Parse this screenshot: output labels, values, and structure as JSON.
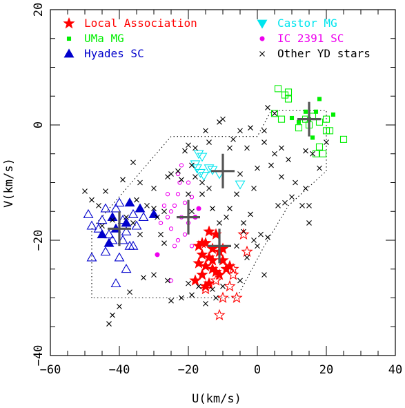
{
  "chart_data": {
    "type": "scatter",
    "title": "",
    "xlabel": "U(km/s)",
    "ylabel": "V(km/s)",
    "xlim": [
      -60,
      40
    ],
    "ylim": [
      -40,
      20
    ],
    "xticks": [
      -60,
      -40,
      -20,
      0,
      20,
      40
    ],
    "yticks": [
      -40,
      -20,
      0,
      20
    ],
    "grid": false,
    "legend_position": "top",
    "colors": {
      "local": "#ff0000",
      "uma": "#00ee00",
      "hyades": "#0000cc",
      "castor": "#00e5ee",
      "ic2391": "#ee00ee",
      "other": "#000000",
      "cross": "#555555",
      "boundary": "#000000"
    },
    "series": [
      {
        "name": "Local Association",
        "marker": "star",
        "color": "#ff0000",
        "filled": [
          [
            -14,
            -18.5
          ],
          [
            -12,
            -19
          ],
          [
            -15,
            -20.5
          ],
          [
            -17,
            -21
          ],
          [
            -13,
            -21.5
          ],
          [
            -16,
            -22.5
          ],
          [
            -11,
            -22
          ],
          [
            -14,
            -23
          ],
          [
            -10,
            -23.5
          ],
          [
            -17,
            -24
          ],
          [
            -15,
            -24.5
          ],
          [
            -13,
            -25
          ],
          [
            -8,
            -24.5
          ],
          [
            -16,
            -26
          ],
          [
            -12,
            -25.5
          ],
          [
            -18,
            -27
          ],
          [
            -14,
            -27.5
          ],
          [
            -11,
            -26
          ],
          [
            -9,
            -25
          ],
          [
            -15,
            -28
          ],
          [
            -13,
            -23.5
          ],
          [
            -16,
            -20.5
          ],
          [
            -10,
            -21.5
          ]
        ],
        "open": [
          [
            -4,
            -19
          ],
          [
            -3,
            -22
          ],
          [
            -7,
            -25
          ],
          [
            -8,
            -28
          ],
          [
            -10,
            -30
          ],
          [
            -6,
            -30
          ],
          [
            -11,
            -33
          ],
          [
            -15,
            -28.5
          ],
          [
            -12,
            -27
          ],
          [
            -7,
            -26
          ]
        ]
      },
      {
        "name": "UMa MG",
        "marker": "square",
        "color": "#00ee00",
        "filled": [
          [
            14,
            2.3
          ],
          [
            17,
            2.3
          ],
          [
            18,
            4.5
          ],
          [
            22,
            1.8
          ],
          [
            10,
            1.2
          ],
          [
            16,
            -2.2
          ],
          [
            15,
            1.0
          ],
          [
            12,
            0.5
          ]
        ],
        "open": [
          [
            6,
            6.3
          ],
          [
            8,
            5.2
          ],
          [
            9,
            5.7
          ],
          [
            14,
            1
          ],
          [
            16,
            1.5
          ],
          [
            18,
            0.5
          ],
          [
            12,
            -0.5
          ],
          [
            5,
            2
          ],
          [
            7,
            1
          ],
          [
            20,
            -1
          ],
          [
            20,
            1
          ],
          [
            17,
            -5
          ],
          [
            19,
            -5
          ],
          [
            21,
            -1
          ],
          [
            25,
            -2.5
          ],
          [
            18,
            -3.8
          ],
          [
            9,
            4.5
          ],
          [
            15,
            0
          ]
        ]
      },
      {
        "name": "Hyades SC",
        "marker": "triangle",
        "color": "#0000cc",
        "filled": [
          [
            -34,
            -14.5
          ],
          [
            -30,
            -15.5
          ],
          [
            -37,
            -13.5
          ],
          [
            -45,
            -19
          ],
          [
            -41,
            -18
          ],
          [
            -38,
            -17
          ],
          [
            -43,
            -20.5
          ],
          [
            -42,
            -16
          ]
        ],
        "open": [
          [
            -49,
            -15.5
          ],
          [
            -48,
            -17.5
          ],
          [
            -44,
            -14.5
          ],
          [
            -40,
            -13.5
          ],
          [
            -36,
            -15.5
          ],
          [
            -33,
            -16
          ],
          [
            -38,
            -18.5
          ],
          [
            -37,
            -21
          ],
          [
            -42,
            -20
          ],
          [
            -46,
            -18
          ],
          [
            -41,
            -14.5
          ],
          [
            -39,
            -16.5
          ],
          [
            -35,
            -17.5
          ],
          [
            -44,
            -22
          ],
          [
            -41,
            -27.5
          ],
          [
            -38,
            -25
          ],
          [
            -36,
            -21
          ],
          [
            -43,
            -19
          ],
          [
            -48,
            -23
          ],
          [
            -39,
            -20
          ],
          [
            -45,
            -16.5
          ],
          [
            -40,
            -23
          ]
        ]
      },
      {
        "name": "Castor MG",
        "marker": "triangle-down",
        "color": "#00e5ee",
        "filled": [],
        "open": [
          [
            -17,
            -5
          ],
          [
            -16,
            -5.5
          ],
          [
            -18,
            -6.8
          ],
          [
            -17.5,
            -7.5
          ],
          [
            -16.5,
            -8.3
          ],
          [
            -15.5,
            -8.8
          ],
          [
            -13,
            -7.8
          ],
          [
            -11,
            -8.5
          ],
          [
            -5,
            -10.3
          ],
          [
            -14,
            -7.5
          ]
        ]
      },
      {
        "name": "IC 2391 SC",
        "marker": "circle",
        "color": "#ee00ee",
        "filled": [
          [
            -17,
            -14.5
          ],
          [
            -29,
            -22.5
          ],
          [
            -18,
            -16
          ]
        ],
        "open": [
          [
            -22,
            -7
          ],
          [
            -23,
            -8.5
          ],
          [
            -22.5,
            -10
          ],
          [
            -24,
            -14
          ],
          [
            -25,
            -15
          ],
          [
            -26,
            -16
          ],
          [
            -25,
            -18
          ],
          [
            -22,
            -16
          ],
          [
            -20,
            -17
          ],
          [
            -21,
            -19
          ],
          [
            -23,
            -20
          ],
          [
            -24,
            -21
          ],
          [
            -19,
            -12.5
          ],
          [
            -21,
            -13.5
          ],
          [
            -27,
            -14
          ],
          [
            -26,
            -12
          ],
          [
            -28,
            -17
          ],
          [
            -19,
            -21
          ],
          [
            -25,
            -27
          ],
          [
            -20,
            -10
          ],
          [
            -23,
            -12
          ]
        ]
      },
      {
        "name": "Other YD stars",
        "marker": "x",
        "color": "#000000",
        "filled": [
          [
            -10,
            1
          ],
          [
            -11,
            0.5
          ],
          [
            3,
            3
          ],
          [
            5,
            2
          ],
          [
            2,
            -1
          ],
          [
            -2,
            -0.5
          ],
          [
            -5,
            -1
          ],
          [
            -7,
            -2.5
          ],
          [
            -8,
            -4
          ],
          [
            -14,
            -3
          ],
          [
            -15,
            -1
          ],
          [
            -18,
            -4
          ],
          [
            -20,
            -3.5
          ],
          [
            -21,
            -4.5
          ],
          [
            -19,
            -7
          ],
          [
            -23,
            -8
          ],
          [
            -25,
            -8.5
          ],
          [
            -22,
            -9.5
          ],
          [
            -36,
            -6.5
          ],
          [
            -39,
            -9.5
          ],
          [
            -44,
            -11.5
          ],
          [
            -50,
            -11.5
          ],
          [
            -48,
            -13
          ],
          [
            -35,
            -13
          ],
          [
            -32,
            -14
          ],
          [
            -30,
            -14.5
          ],
          [
            -27,
            -15
          ],
          [
            -29,
            -16
          ],
          [
            -28,
            -19
          ],
          [
            -27,
            -20.5
          ],
          [
            -34,
            -19
          ],
          [
            -36,
            -17
          ],
          [
            -38,
            -16
          ],
          [
            -42,
            -16.5
          ],
          [
            -45,
            -17.5
          ],
          [
            -37,
            -29
          ],
          [
            -40,
            -31.5
          ],
          [
            -42,
            -33
          ],
          [
            -43,
            -34.5
          ],
          [
            -33,
            -26.5
          ],
          [
            -30,
            -26
          ],
          [
            -26,
            -27
          ],
          [
            -25,
            -30.5
          ],
          [
            -22,
            -30
          ],
          [
            -19,
            -29.5
          ],
          [
            -17,
            -28
          ],
          [
            -20,
            -27.5
          ],
          [
            -12,
            -30
          ],
          [
            -15,
            -31
          ],
          [
            -10,
            -28
          ],
          [
            -5,
            -27
          ],
          [
            -3,
            -23
          ],
          [
            2,
            -26
          ],
          [
            0,
            -21
          ],
          [
            1,
            -19
          ],
          [
            3,
            -19.5
          ],
          [
            -2,
            -15.5
          ],
          [
            -4,
            -17
          ],
          [
            -1,
            -11
          ],
          [
            0,
            -7.5
          ],
          [
            4,
            -7
          ],
          [
            7,
            -9
          ],
          [
            8,
            -13.5
          ],
          [
            6,
            -14
          ],
          [
            11,
            -10
          ],
          [
            10,
            -12.5
          ],
          [
            14,
            -11
          ],
          [
            13,
            -14
          ],
          [
            15,
            -17
          ],
          [
            18,
            -7.5
          ],
          [
            16,
            -5
          ],
          [
            14,
            -4.5
          ],
          [
            9,
            -6
          ],
          [
            7,
            -4
          ],
          [
            5,
            -5
          ],
          [
            2,
            -3
          ],
          [
            -3,
            -4
          ],
          [
            -5,
            -8.5
          ],
          [
            -6,
            -12
          ],
          [
            -8,
            -14.5
          ],
          [
            -9,
            -16
          ],
          [
            -11,
            -17
          ],
          [
            -13,
            -14.5
          ],
          [
            -14,
            -11
          ],
          [
            -16,
            -10
          ],
          [
            -18,
            -9
          ],
          [
            -20,
            -12
          ],
          [
            -6,
            -21
          ],
          [
            -4,
            -18.5
          ],
          [
            -1,
            -20
          ],
          [
            15,
            -14
          ],
          [
            20,
            -3
          ],
          [
            -13,
            -28.5
          ],
          [
            -16,
            -12
          ],
          [
            -19,
            -15
          ],
          [
            -26,
            -9
          ],
          [
            -30,
            -11
          ],
          [
            -34,
            -10
          ],
          [
            -46,
            -14
          ]
        ],
        "open": []
      }
    ],
    "group_means": [
      {
        "series": "UMa MG",
        "x": 15,
        "y": 1
      },
      {
        "series": "Castor MG",
        "x": -10,
        "y": -8
      },
      {
        "series": "IC 2391 SC",
        "x": -20,
        "y": -16
      },
      {
        "series": "Hyades SC",
        "x": -40,
        "y": -18
      },
      {
        "series": "Local Association",
        "x": -11,
        "y": -21
      }
    ],
    "boundary": [
      [
        -48,
        -30
      ],
      [
        -48,
        -18
      ],
      [
        -25,
        -2
      ],
      [
        0,
        -2
      ],
      [
        4,
        2.5
      ],
      [
        20,
        2.5
      ],
      [
        20,
        -8
      ],
      [
        9,
        -14
      ],
      [
        2,
        -21
      ],
      [
        -6,
        -30
      ],
      [
        -48,
        -30
      ]
    ]
  }
}
